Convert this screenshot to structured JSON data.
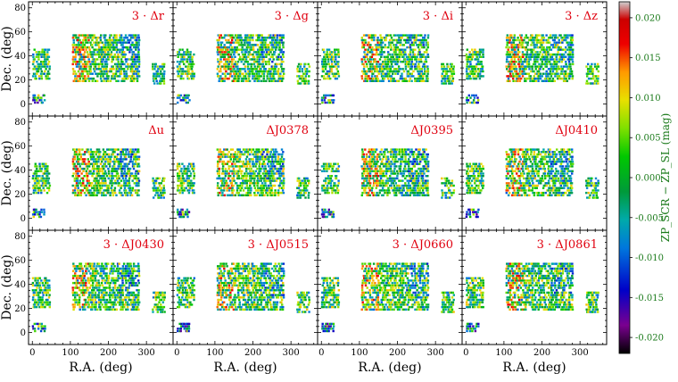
{
  "chart_data": {
    "type": "scatter",
    "layout": {
      "rows": 3,
      "cols": 4
    },
    "xlabel": "R.A. (deg)",
    "ylabel": "Dec. (deg)",
    "xlim": [
      -10,
      370
    ],
    "ylim": [
      -10,
      85
    ],
    "xticks": [
      0,
      100,
      200,
      300
    ],
    "yticks": [
      0,
      20,
      40,
      60,
      80
    ],
    "panels": [
      {
        "title": "3 · Δr"
      },
      {
        "title": "3 · Δg"
      },
      {
        "title": "3 · Δi"
      },
      {
        "title": "3 · Δz"
      },
      {
        "title": "Δu"
      },
      {
        "title": "ΔJ0378"
      },
      {
        "title": "ΔJ0395"
      },
      {
        "title": "ΔJ0410"
      },
      {
        "title": "3 · ΔJ0430"
      },
      {
        "title": "3 · ΔJ0515"
      },
      {
        "title": "3 · ΔJ0660"
      },
      {
        "title": "3 · ΔJ0861"
      }
    ],
    "colorbar": {
      "label": "ZP_SCR − ZP_SL (mag)",
      "range": [
        -0.022,
        0.022
      ],
      "ticks": [
        "0.020",
        "0.015",
        "0.010",
        "0.005",
        "0.000",
        "-0.005",
        "-0.010",
        "-0.015",
        "-0.020"
      ],
      "colormap": "nipy_spectral"
    },
    "footprint_regions_deg": [
      {
        "ra": [
          0,
          30
        ],
        "dec": [
          2,
          8
        ]
      },
      {
        "ra": [
          0,
          45
        ],
        "dec": [
          22,
          46
        ]
      },
      {
        "ra": [
          105,
          280
        ],
        "dec": [
          20,
          58
        ]
      },
      {
        "ra": [
          315,
          345
        ],
        "dec": [
          18,
          35
        ]
      }
    ]
  }
}
